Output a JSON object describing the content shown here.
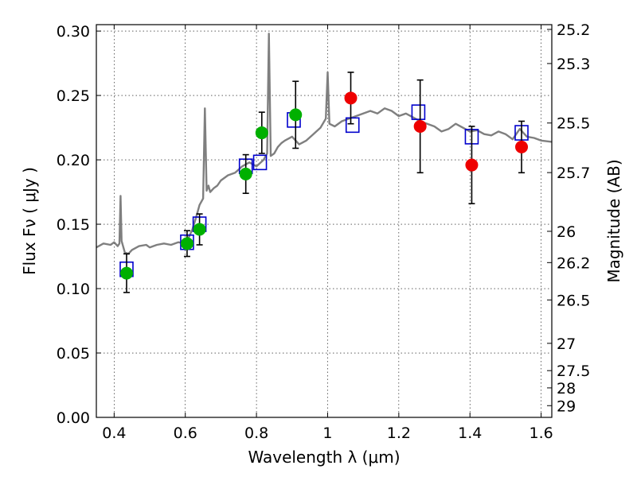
{
  "chart_data": {
    "type": "scatter",
    "title": "",
    "xlabel": "Wavelength  λ (μm)",
    "ylabel": "Flux  Fν  ( μJy )",
    "ylabel_right": "Magnitude (AB)",
    "xlim": [
      0.35,
      1.63
    ],
    "ylim": [
      0.0,
      0.305
    ],
    "grid": true,
    "x_ticks": [
      0.4,
      0.6,
      0.8,
      1.0,
      1.2,
      1.4,
      1.6
    ],
    "x_tick_labels": [
      "0.4",
      "0.6",
      "0.8",
      "1",
      "1.2",
      "1.4",
      "1.6"
    ],
    "y_ticks": [
      0.0,
      0.05,
      0.1,
      0.15,
      0.2,
      0.25,
      0.3
    ],
    "y_tick_labels": [
      "0.00",
      "0.05",
      "0.10",
      "0.15",
      "0.20",
      "0.25",
      "0.30"
    ],
    "mag_ticks": [
      {
        "label": "25.2",
        "flux": 0.3013
      },
      {
        "label": "25.3",
        "flux": 0.2748
      },
      {
        "label": "25.5",
        "flux": 0.2286
      },
      {
        "label": "25.7",
        "flux": 0.1901
      },
      {
        "label": "26",
        "flux": 0.1445
      },
      {
        "label": "26.2",
        "flux": 0.1202
      },
      {
        "label": "26.5",
        "flux": 0.0912
      },
      {
        "label": "27",
        "flux": 0.0575
      },
      {
        "label": "27.5",
        "flux": 0.0363
      },
      {
        "label": "28",
        "flux": 0.0229
      },
      {
        "label": "29",
        "flux": 0.0091
      }
    ],
    "colors": {
      "model": "#7f7f7f",
      "model_points": "#0000cc",
      "observed_optical": "#00b000",
      "observed_nir": "#ee0000",
      "errorbars": "#000000"
    },
    "series": [
      {
        "kind": "line",
        "x": [
          0.35,
          0.37,
          0.39,
          0.4,
          0.41,
          0.415,
          0.418,
          0.421,
          0.43,
          0.44,
          0.45,
          0.47,
          0.49,
          0.5,
          0.52,
          0.54,
          0.56,
          0.58,
          0.6,
          0.61,
          0.62,
          0.63,
          0.64,
          0.65,
          0.655,
          0.66,
          0.665,
          0.67,
          0.68,
          0.69,
          0.7,
          0.72,
          0.74,
          0.76,
          0.78,
          0.8,
          0.82,
          0.83,
          0.835,
          0.84,
          0.85,
          0.86,
          0.87,
          0.88,
          0.9,
          0.92,
          0.94,
          0.96,
          0.98,
          0.995,
          1.0,
          1.005,
          1.02,
          1.04,
          1.06,
          1.08,
          1.1,
          1.12,
          1.14,
          1.16,
          1.18,
          1.2,
          1.22,
          1.24,
          1.26,
          1.28,
          1.3,
          1.32,
          1.34,
          1.36,
          1.38,
          1.4,
          1.42,
          1.44,
          1.46,
          1.48,
          1.5,
          1.52,
          1.54,
          1.56,
          1.58,
          1.6,
          1.63
        ],
        "y": [
          0.132,
          0.135,
          0.134,
          0.136,
          0.133,
          0.135,
          0.172,
          0.137,
          0.128,
          0.127,
          0.13,
          0.133,
          0.134,
          0.132,
          0.134,
          0.135,
          0.134,
          0.136,
          0.135,
          0.14,
          0.146,
          0.155,
          0.165,
          0.17,
          0.24,
          0.176,
          0.18,
          0.175,
          0.178,
          0.18,
          0.184,
          0.188,
          0.19,
          0.195,
          0.198,
          0.195,
          0.2,
          0.205,
          0.298,
          0.203,
          0.205,
          0.21,
          0.213,
          0.215,
          0.218,
          0.212,
          0.215,
          0.22,
          0.225,
          0.232,
          0.268,
          0.228,
          0.226,
          0.23,
          0.232,
          0.234,
          0.236,
          0.238,
          0.236,
          0.24,
          0.238,
          0.234,
          0.236,
          0.233,
          0.23,
          0.228,
          0.226,
          0.222,
          0.224,
          0.228,
          0.225,
          0.222,
          0.223,
          0.22,
          0.219,
          0.222,
          0.22,
          0.216,
          0.224,
          0.218,
          0.217,
          0.215,
          0.214
        ]
      },
      {
        "kind": "open-square",
        "x": [
          0.435,
          0.605,
          0.64,
          0.77,
          0.81,
          0.905,
          1.07,
          1.255,
          1.405,
          1.545
        ],
        "y": [
          0.115,
          0.136,
          0.15,
          0.195,
          0.198,
          0.231,
          0.227,
          0.237,
          0.218,
          0.221
        ]
      },
      {
        "kind": "filled-circle",
        "x": [
          0.435,
          0.605,
          0.64,
          0.77,
          0.815,
          0.91
        ],
        "y": [
          0.112,
          0.135,
          0.146,
          0.189,
          0.221,
          0.235
        ],
        "yerr": [
          0.015,
          0.01,
          0.012,
          0.015,
          0.016,
          0.026
        ]
      },
      {
        "kind": "filled-circle",
        "x": [
          1.065,
          1.26,
          1.405,
          1.545
        ],
        "y": [
          0.248,
          0.226,
          0.196,
          0.21
        ],
        "yerr": [
          0.02,
          0.036,
          0.03,
          0.02
        ]
      }
    ]
  }
}
